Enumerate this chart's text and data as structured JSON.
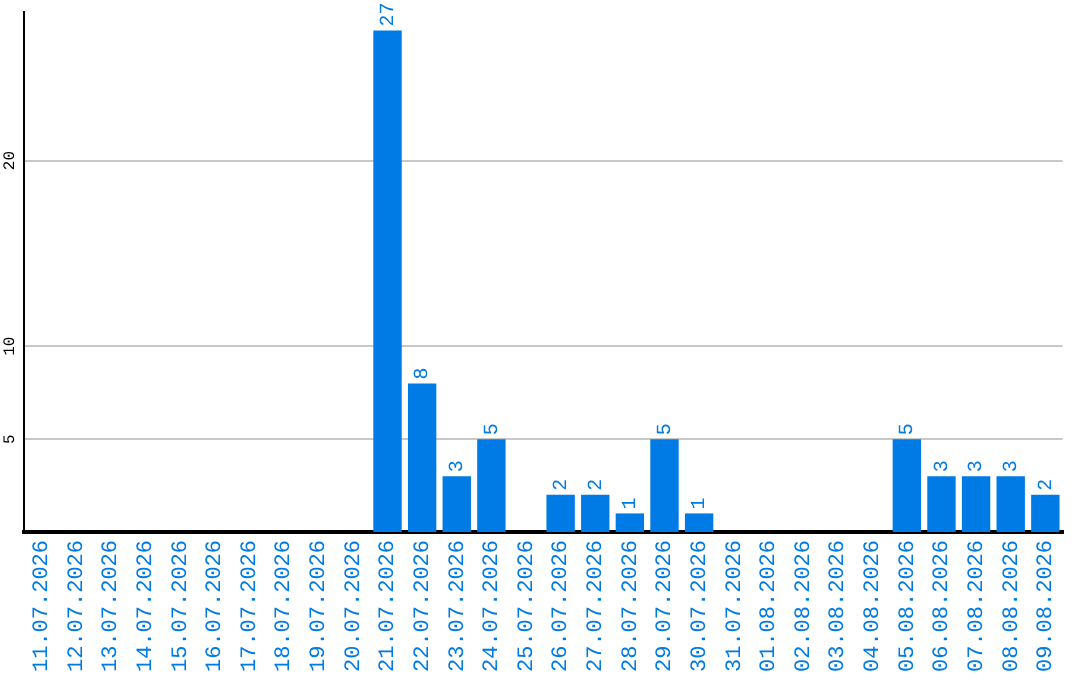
{
  "chart_data": {
    "type": "bar",
    "categories": [
      "11.07.2026",
      "12.07.2026",
      "13.07.2026",
      "14.07.2026",
      "15.07.2026",
      "16.07.2026",
      "17.07.2026",
      "18.07.2026",
      "19.07.2026",
      "20.07.2026",
      "21.07.2026",
      "22.07.2026",
      "23.07.2026",
      "24.07.2026",
      "25.07.2026",
      "26.07.2026",
      "27.07.2026",
      "28.07.2026",
      "29.07.2026",
      "30.07.2026",
      "31.07.2026",
      "01.08.2026",
      "02.08.2026",
      "03.08.2026",
      "04.08.2026",
      "05.08.2026",
      "06.08.2026",
      "07.08.2026",
      "08.08.2026",
      "09.08.2026"
    ],
    "values": [
      0,
      0,
      0,
      0,
      0,
      0,
      0,
      0,
      0,
      0,
      27,
      8,
      3,
      5,
      0,
      2,
      2,
      1,
      5,
      1,
      0,
      0,
      0,
      0,
      0,
      5,
      3,
      3,
      3,
      2
    ],
    "value_labels": [
      null,
      null,
      null,
      null,
      null,
      null,
      null,
      null,
      null,
      null,
      "27",
      "8",
      "3",
      "5",
      null,
      "2",
      "2",
      "1",
      "5",
      "1",
      null,
      null,
      null,
      null,
      null,
      "5",
      "3",
      "3",
      "3",
      "2"
    ],
    "color": "#007be5",
    "ylim": [
      0,
      28
    ],
    "yticks": [
      5,
      10,
      20
    ],
    "grid": "y",
    "legend": false
  }
}
